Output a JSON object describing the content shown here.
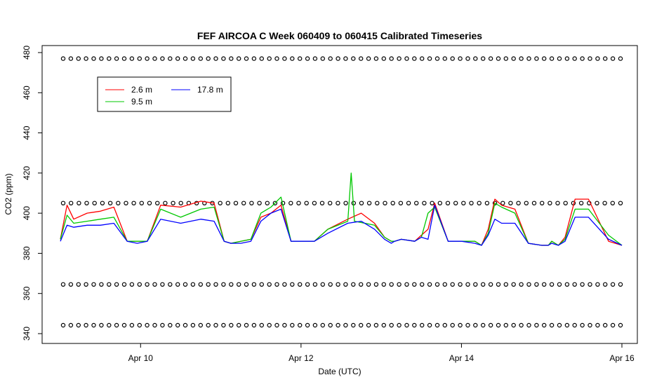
{
  "chart_data": {
    "type": "line",
    "title": "FEF AIRCOA C  Week 060409 to 060415  Calibrated Timeseries",
    "xlabel": "Date (UTC)",
    "ylabel": "CO2 (ppm)",
    "xlim": [
      "2006-04-09",
      "2006-04-16"
    ],
    "ylim": [
      340,
      480
    ],
    "x_ticks": [
      {
        "date": "2006-04-10",
        "label": "Apr 10"
      },
      {
        "date": "2006-04-12",
        "label": "Apr 12"
      },
      {
        "date": "2006-04-14",
        "label": "Apr 14"
      },
      {
        "date": "2006-04-16",
        "label": "Apr 16"
      }
    ],
    "y_ticks": [
      {
        "value": 340,
        "label": "340"
      },
      {
        "value": 360,
        "label": "360"
      },
      {
        "value": 380,
        "label": "380"
      },
      {
        "value": 400,
        "label": "400"
      },
      {
        "value": 420,
        "label": "420"
      },
      {
        "value": 440,
        "label": "440"
      },
      {
        "value": 460,
        "label": "460"
      },
      {
        "value": 480,
        "label": "480"
      }
    ],
    "grid": false,
    "legend_position": "top-left",
    "series": [
      {
        "name": "2.6 m",
        "color": "#ff0000",
        "x": [
          "2006-04-09 00:00",
          "2006-04-09 02:00",
          "2006-04-09 04:00",
          "2006-04-09 08:00",
          "2006-04-09 12:00",
          "2006-04-09 16:00",
          "2006-04-09 20:00",
          "2006-04-09 23:00",
          "2006-04-10 02:00",
          "2006-04-10 06:00",
          "2006-04-10 12:00",
          "2006-04-10 18:00",
          "2006-04-10 22:00",
          "2006-04-11 01:00",
          "2006-04-11 03:00",
          "2006-04-11 06:00",
          "2006-04-11 09:00",
          "2006-04-11 12:00",
          "2006-04-11 15:00",
          "2006-04-11 18:00",
          "2006-04-11 21:00",
          "2006-04-12 02:00",
          "2006-04-12 04:00",
          "2006-04-12 08:00",
          "2006-04-12 14:00",
          "2006-04-12 18:00",
          "2006-04-12 22:00",
          "2006-04-13 01:00",
          "2006-04-13 03:00",
          "2006-04-13 04:00",
          "2006-04-13 06:00",
          "2006-04-13 10:00",
          "2006-04-13 12:00",
          "2006-04-13 14:00",
          "2006-04-13 16:00",
          "2006-04-13 20:00",
          "2006-04-14 00:00",
          "2006-04-14 04:00",
          "2006-04-14 06:00",
          "2006-04-14 08:00",
          "2006-04-14 10:00",
          "2006-04-14 12:00",
          "2006-04-14 16:00",
          "2006-04-14 20:00",
          "2006-04-15 00:00",
          "2006-04-15 02:00",
          "2006-04-15 03:00",
          "2006-04-15 05:00",
          "2006-04-15 07:00",
          "2006-04-15 10:00",
          "2006-04-15 14:00",
          "2006-04-15 20:00",
          "2006-04-16 00:00"
        ],
        "values": [
          387,
          404,
          397,
          400,
          401,
          403,
          386,
          386,
          386,
          404,
          403,
          406,
          405,
          386,
          385,
          386,
          387,
          398,
          400,
          404,
          386,
          386,
          386,
          392,
          397,
          400,
          395,
          388,
          386,
          386,
          387,
          386,
          389,
          392,
          405,
          386,
          386,
          386,
          384,
          392,
          407,
          404,
          402,
          385,
          384,
          384,
          386,
          384,
          388,
          407,
          407,
          386,
          384
        ]
      },
      {
        "name": "9.5 m",
        "color": "#00c800",
        "x": [
          "2006-04-09 00:00",
          "2006-04-09 02:00",
          "2006-04-09 04:00",
          "2006-04-09 08:00",
          "2006-04-09 12:00",
          "2006-04-09 16:00",
          "2006-04-09 20:00",
          "2006-04-09 23:00",
          "2006-04-10 02:00",
          "2006-04-10 06:00",
          "2006-04-10 12:00",
          "2006-04-10 18:00",
          "2006-04-10 22:00",
          "2006-04-11 01:00",
          "2006-04-11 03:00",
          "2006-04-11 06:00",
          "2006-04-11 09:00",
          "2006-04-11 12:00",
          "2006-04-11 15:00",
          "2006-04-11 18:00",
          "2006-04-11 21:00",
          "2006-04-12 02:00",
          "2006-04-12 04:00",
          "2006-04-12 08:00",
          "2006-04-12 14:00",
          "2006-04-12 15:00",
          "2006-04-12 16:00",
          "2006-04-12 22:00",
          "2006-04-13 01:00",
          "2006-04-13 03:00",
          "2006-04-13 04:00",
          "2006-04-13 06:00",
          "2006-04-13 10:00",
          "2006-04-13 12:00",
          "2006-04-13 14:00",
          "2006-04-13 16:00",
          "2006-04-13 20:00",
          "2006-04-14 00:00",
          "2006-04-14 04:00",
          "2006-04-14 06:00",
          "2006-04-14 08:00",
          "2006-04-14 10:00",
          "2006-04-14 12:00",
          "2006-04-14 16:00",
          "2006-04-14 20:00",
          "2006-04-15 00:00",
          "2006-04-15 02:00",
          "2006-04-15 03:00",
          "2006-04-15 05:00",
          "2006-04-15 07:00",
          "2006-04-15 10:00",
          "2006-04-15 14:00",
          "2006-04-15 20:00",
          "2006-04-16 00:00"
        ],
        "values": [
          387,
          399,
          395,
          396,
          397,
          398,
          386,
          386,
          386,
          402,
          398,
          402,
          403,
          386,
          385,
          386,
          387,
          400,
          403,
          408,
          386,
          386,
          386,
          392,
          396,
          420,
          396,
          394,
          388,
          386,
          386,
          387,
          386,
          388,
          400,
          403,
          386,
          386,
          386,
          384,
          390,
          405,
          403,
          400,
          385,
          384,
          384,
          386,
          384,
          387,
          402,
          402,
          389,
          384
        ]
      },
      {
        "name": "17.8 m",
        "color": "#0000ff",
        "x": [
          "2006-04-09 00:00",
          "2006-04-09 02:00",
          "2006-04-09 04:00",
          "2006-04-09 08:00",
          "2006-04-09 12:00",
          "2006-04-09 16:00",
          "2006-04-09 20:00",
          "2006-04-09 23:00",
          "2006-04-10 02:00",
          "2006-04-10 06:00",
          "2006-04-10 12:00",
          "2006-04-10 18:00",
          "2006-04-10 22:00",
          "2006-04-11 01:00",
          "2006-04-11 03:00",
          "2006-04-11 06:00",
          "2006-04-11 09:00",
          "2006-04-11 12:00",
          "2006-04-11 15:00",
          "2006-04-11 18:00",
          "2006-04-11 21:00",
          "2006-04-12 02:00",
          "2006-04-12 04:00",
          "2006-04-12 08:00",
          "2006-04-12 14:00",
          "2006-04-12 18:00",
          "2006-04-12 22:00",
          "2006-04-13 01:00",
          "2006-04-13 03:00",
          "2006-04-13 04:00",
          "2006-04-13 06:00",
          "2006-04-13 10:00",
          "2006-04-13 12:00",
          "2006-04-13 14:00",
          "2006-04-13 16:00",
          "2006-04-13 20:00",
          "2006-04-14 00:00",
          "2006-04-14 04:00",
          "2006-04-14 06:00",
          "2006-04-14 08:00",
          "2006-04-14 10:00",
          "2006-04-14 12:00",
          "2006-04-14 16:00",
          "2006-04-14 20:00",
          "2006-04-15 00:00",
          "2006-04-15 02:00",
          "2006-04-15 03:00",
          "2006-04-15 05:00",
          "2006-04-15 07:00",
          "2006-04-15 10:00",
          "2006-04-15 14:00",
          "2006-04-15 20:00",
          "2006-04-16 00:00"
        ],
        "values": [
          386,
          394,
          393,
          394,
          394,
          395,
          386,
          385,
          386,
          397,
          395,
          397,
          396,
          386,
          385,
          385,
          386,
          396,
          400,
          402,
          386,
          386,
          386,
          390,
          395,
          396,
          392,
          387,
          385,
          386,
          387,
          386,
          388,
          387,
          404,
          386,
          386,
          385,
          384,
          389,
          397,
          395,
          395,
          385,
          384,
          384,
          385,
          384,
          386,
          398,
          398,
          387,
          384
        ]
      }
    ],
    "reference_markers": [
      {
        "value": 477,
        "count": 74
      },
      {
        "value": 405,
        "count": 72
      },
      {
        "value": 364.5,
        "count": 74
      },
      {
        "value": 344.2,
        "count": 74
      }
    ],
    "legend_entries": [
      "2.6 m",
      "9.5 m",
      "17.8 m"
    ]
  }
}
